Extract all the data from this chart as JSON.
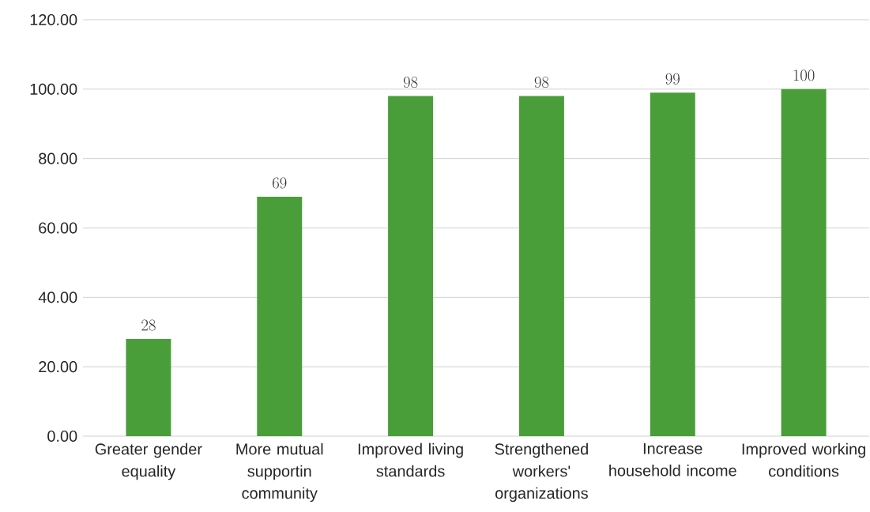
{
  "chart_data": {
    "type": "bar",
    "categories": [
      "Greater gender equality",
      "More mutual supportin community",
      "Improved living standards",
      "Strengthened workers' organizations",
      "Increase household income",
      "Improved working conditions"
    ],
    "values": [
      28,
      69,
      98,
      98,
      99,
      100
    ],
    "color": "#4a9e3a",
    "ylim": [
      0,
      120
    ],
    "yticks": [
      {
        "value": 0,
        "label": "0.00"
      },
      {
        "value": 20,
        "label": "20.00"
      },
      {
        "value": 40,
        "label": "40.00"
      },
      {
        "value": 60,
        "label": "60.00"
      },
      {
        "value": 80,
        "label": "80.00"
      },
      {
        "value": 100,
        "label": "100.00"
      },
      {
        "value": 120,
        "label": "120.00"
      }
    ],
    "grid": "y",
    "data_labels": true
  }
}
